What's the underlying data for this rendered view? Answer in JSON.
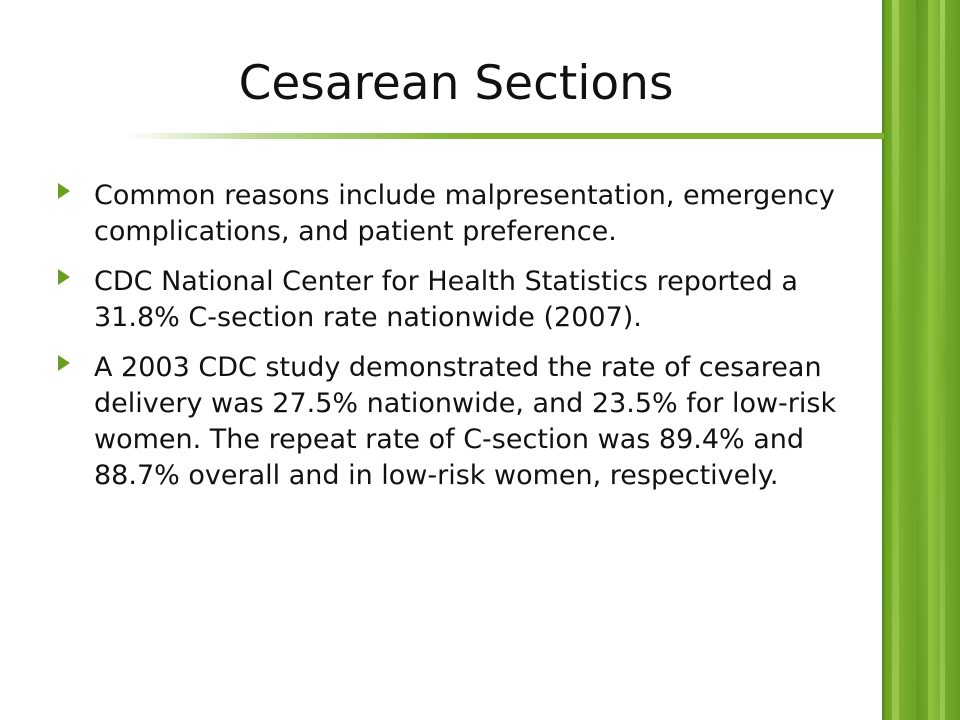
{
  "slide": {
    "title": "Cesarean Sections",
    "bullets": [
      {
        "text": "Common reasons include malpresentation, emergency complications, and patient preference."
      },
      {
        "text": "CDC National Center for Health Statistics reported a 31.8% C-section rate nationwide (2007)."
      },
      {
        "text": "A 2003 CDC study demonstrated  the rate of cesarean delivery was 27.5% nationwide, and 23.5% for low-risk women.  The repeat rate of C-section was 89.4% and 88.7% overall and in low-risk women, respectively."
      }
    ],
    "bullet_icon": "triangle-right-icon",
    "colors": {
      "accent": "#7db32e",
      "bullet": "#6b9e23",
      "text": "#111111",
      "background": "#ffffff"
    }
  }
}
